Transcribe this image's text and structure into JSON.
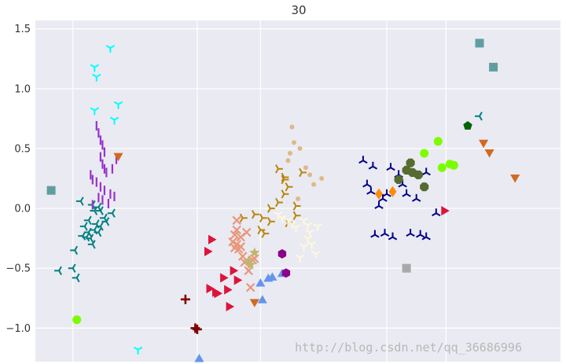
{
  "chart_data": {
    "type": "scatter",
    "title": "30",
    "xlabel": "",
    "ylabel": "",
    "ylim": [
      -1.28,
      1.57
    ],
    "yticks": [
      -1.0,
      -0.5,
      0.0,
      0.5,
      1.0,
      1.5
    ],
    "ytick_labels": [
      "−1.0",
      "−0.5",
      "0.0",
      "0.5",
      "1.0",
      "1.5"
    ],
    "xlim": [
      -0.98,
      1.68
    ],
    "xgrid": [
      -0.79,
      -0.16,
      0.16,
      0.8,
      1.1
    ],
    "x_tick_labels_visible": false,
    "grid": true,
    "background": "#eaeaf2",
    "grid_color": "#ffffff",
    "series": [
      {
        "marker": "tri_left",
        "color": "#008080",
        "points": [
          [
            -0.86,
            -0.52
          ],
          [
            -0.79,
            -0.5
          ],
          [
            -0.77,
            -0.58
          ],
          [
            -0.78,
            -0.35
          ],
          [
            -0.74,
            -0.23
          ],
          [
            -0.73,
            -0.15
          ],
          [
            -0.72,
            -0.24
          ],
          [
            -0.71,
            -0.2
          ],
          [
            -0.7,
            -0.25
          ],
          [
            -0.69,
            -0.3
          ],
          [
            -0.71,
            -0.1
          ],
          [
            -0.68,
            -0.18
          ],
          [
            -0.67,
            -0.13
          ],
          [
            -0.66,
            -0.2
          ],
          [
            -0.65,
            -0.15
          ],
          [
            -0.63,
            -0.08
          ],
          [
            -0.62,
            -0.11
          ],
          [
            -0.59,
            -0.04
          ],
          [
            -0.75,
            0.06
          ],
          [
            -0.69,
            0.03
          ],
          [
            -0.66,
            0.01
          ],
          [
            -0.68,
            -0.02
          ],
          [
            -0.65,
            -0.02
          ],
          [
            1.27,
            0.77
          ]
        ]
      },
      {
        "marker": "tri_down",
        "color": "#00ffff",
        "points": [
          [
            -0.68,
            1.18
          ],
          [
            -0.67,
            1.1
          ],
          [
            -0.68,
            0.82
          ],
          [
            -0.6,
            1.34
          ],
          [
            -0.56,
            0.87
          ],
          [
            -0.58,
            0.74
          ],
          [
            -0.46,
            -1.18
          ]
        ]
      },
      {
        "marker": "vline",
        "color": "#9932cc",
        "points": [
          [
            -0.67,
            0.69
          ],
          [
            -0.66,
            0.63
          ],
          [
            -0.65,
            0.57
          ],
          [
            -0.64,
            0.53
          ],
          [
            -0.63,
            0.47
          ],
          [
            -0.65,
            0.43
          ],
          [
            -0.64,
            0.37
          ],
          [
            -0.63,
            0.33
          ],
          [
            -0.62,
            0.3
          ],
          [
            -0.7,
            0.28
          ],
          [
            -0.69,
            0.24
          ],
          [
            -0.67,
            0.22
          ],
          [
            -0.65,
            0.18
          ],
          [
            -0.63,
            0.15
          ],
          [
            -0.6,
            0.12
          ],
          [
            -0.58,
            0.1
          ],
          [
            -0.66,
            0.09
          ],
          [
            -0.64,
            0.07
          ],
          [
            -0.61,
            0.04
          ],
          [
            -0.69,
            0.03
          ],
          [
            -0.59,
            0.33
          ],
          [
            -0.57,
            0.41
          ]
        ]
      },
      {
        "marker": "triangle_down",
        "color": "#d2691e",
        "points": [
          [
            -0.56,
            0.44
          ],
          [
            1.29,
            0.55
          ],
          [
            1.32,
            0.47
          ],
          [
            1.45,
            0.26
          ],
          [
            0.13,
            -0.78
          ]
        ]
      },
      {
        "marker": "square",
        "color": "#5f9ea0",
        "points": [
          [
            -0.9,
            0.15
          ],
          [
            1.27,
            1.38
          ],
          [
            1.34,
            1.18
          ]
        ]
      },
      {
        "marker": "square",
        "color": "#a9a9a9",
        "points": [
          [
            0.9,
            -0.5
          ]
        ]
      },
      {
        "marker": "circle",
        "color": "#7cfc00",
        "points": [
          [
            -0.77,
            -0.93
          ],
          [
            0.99,
            0.46
          ],
          [
            1.06,
            0.56
          ],
          [
            1.08,
            0.34
          ],
          [
            1.12,
            0.37
          ],
          [
            1.14,
            0.36
          ]
        ]
      },
      {
        "marker": "plus",
        "color": "#800000",
        "points": [
          [
            -0.22,
            -0.76
          ],
          [
            -0.17,
            -1.0
          ],
          [
            -0.16,
            -1.01
          ]
        ]
      },
      {
        "marker": "triangle_up",
        "color": "#6495ed",
        "points": [
          [
            -0.15,
            -1.26
          ],
          [
            0.16,
            -0.63
          ],
          [
            0.17,
            -0.77
          ],
          [
            0.2,
            -0.59
          ],
          [
            0.22,
            -0.58
          ],
          [
            0.27,
            -0.55
          ]
        ]
      },
      {
        "marker": "triangle_right",
        "color": "#dc143c",
        "points": [
          [
            -0.11,
            -0.36
          ],
          [
            -0.09,
            -0.26
          ],
          [
            -0.1,
            -0.67
          ],
          [
            -0.07,
            -0.7
          ],
          [
            -0.06,
            -0.71
          ],
          [
            -0.03,
            -0.58
          ],
          [
            -0.01,
            -0.68
          ],
          [
            0.0,
            -0.82
          ],
          [
            0.02,
            -0.52
          ],
          [
            0.04,
            -0.6
          ],
          [
            1.09,
            -0.02
          ]
        ]
      },
      {
        "marker": "x",
        "color": "#e9967a",
        "points": [
          [
            0.04,
            -0.1
          ],
          [
            0.03,
            -0.22
          ],
          [
            0.04,
            -0.3
          ],
          [
            0.05,
            -0.34
          ],
          [
            0.07,
            -0.4
          ],
          [
            0.02,
            -0.28
          ],
          [
            0.06,
            -0.24
          ],
          [
            0.09,
            -0.2
          ],
          [
            0.04,
            -0.18
          ],
          [
            0.08,
            -0.45
          ],
          [
            0.1,
            -0.52
          ],
          [
            0.12,
            -0.43
          ],
          [
            0.13,
            -0.42
          ],
          [
            0.11,
            -0.66
          ],
          [
            0.06,
            -0.32
          ],
          [
            0.03,
            -0.33
          ]
        ]
      },
      {
        "marker": "tri_right",
        "color": "#b8860b",
        "points": [
          [
            0.07,
            -0.08
          ],
          [
            0.13,
            -0.05
          ],
          [
            0.16,
            -0.18
          ],
          [
            0.18,
            -0.21
          ],
          [
            0.17,
            -0.08
          ],
          [
            0.21,
            0.0
          ],
          [
            0.25,
            0.05
          ],
          [
            0.28,
            0.12
          ],
          [
            0.28,
            0.26
          ],
          [
            0.25,
            0.33
          ],
          [
            0.28,
            0.24
          ],
          [
            0.3,
            0.18
          ],
          [
            0.34,
            0.02
          ],
          [
            0.3,
            -0.12
          ],
          [
            0.34,
            -0.06
          ],
          [
            0.21,
            -0.11
          ],
          [
            0.37,
            0.3
          ]
        ]
      },
      {
        "marker": "star",
        "color": "#bdb76b",
        "points": [
          [
            0.13,
            -0.37
          ],
          [
            0.11,
            -0.47
          ],
          [
            0.1,
            -0.44
          ]
        ]
      },
      {
        "marker": "hexagon",
        "color": "#8b008b",
        "points": [
          [
            0.27,
            -0.38
          ],
          [
            0.29,
            -0.54
          ]
        ]
      },
      {
        "marker": "tri_down",
        "color": "#fff8dc",
        "points": [
          [
            0.25,
            -0.05
          ],
          [
            0.27,
            -0.08
          ],
          [
            0.3,
            -0.1
          ],
          [
            0.32,
            -0.13
          ],
          [
            0.34,
            -0.16
          ],
          [
            0.38,
            -0.1
          ],
          [
            0.4,
            -0.14
          ],
          [
            0.41,
            -0.2
          ],
          [
            0.4,
            -0.25
          ],
          [
            0.38,
            -0.32
          ],
          [
            0.42,
            -0.3
          ],
          [
            0.44,
            -0.38
          ],
          [
            0.45,
            -0.15
          ],
          [
            0.36,
            -0.41
          ]
        ]
      },
      {
        "marker": "point",
        "color": "#deb887",
        "points": [
          [
            0.32,
            0.68
          ],
          [
            0.33,
            0.55
          ],
          [
            0.36,
            0.5
          ],
          [
            0.39,
            0.34
          ],
          [
            0.41,
            0.28
          ],
          [
            0.3,
            0.4
          ],
          [
            0.43,
            0.2
          ],
          [
            0.31,
            0.46
          ],
          [
            0.35,
            0.08
          ],
          [
            0.47,
            0.25
          ]
        ]
      },
      {
        "marker": "tri_up",
        "color": "#00008b",
        "points": [
          [
            0.68,
            0.4
          ],
          [
            0.73,
            0.35
          ],
          [
            0.7,
            0.2
          ],
          [
            0.72,
            0.14
          ],
          [
            0.76,
            0.02
          ],
          [
            0.78,
            0.08
          ],
          [
            0.8,
            0.12
          ],
          [
            0.82,
            0.34
          ],
          [
            0.86,
            0.28
          ],
          [
            0.88,
            0.2
          ],
          [
            0.9,
            0.12
          ],
          [
            0.95,
            0.08
          ],
          [
            0.74,
            -0.22
          ],
          [
            0.79,
            -0.21
          ],
          [
            0.83,
            -0.24
          ],
          [
            0.92,
            -0.21
          ],
          [
            0.97,
            -0.22
          ],
          [
            1.0,
            -0.24
          ],
          [
            1.05,
            -0.04
          ],
          [
            1.0,
            0.3
          ]
        ]
      },
      {
        "marker": "diamond",
        "color": "#ff8c00",
        "points": [
          [
            0.76,
            0.12
          ],
          [
            0.83,
            0.14
          ]
        ]
      },
      {
        "marker": "octagon",
        "color": "#556b2f",
        "points": [
          [
            0.86,
            0.24
          ],
          [
            0.9,
            0.32
          ],
          [
            0.92,
            0.38
          ],
          [
            0.93,
            0.3
          ],
          [
            0.96,
            0.28
          ],
          [
            0.99,
            0.18
          ]
        ]
      },
      {
        "marker": "pentagon",
        "color": "#006400",
        "points": [
          [
            1.21,
            0.69
          ]
        ]
      }
    ]
  },
  "watermark": "http://blog.csdn.net/qq_36686996"
}
